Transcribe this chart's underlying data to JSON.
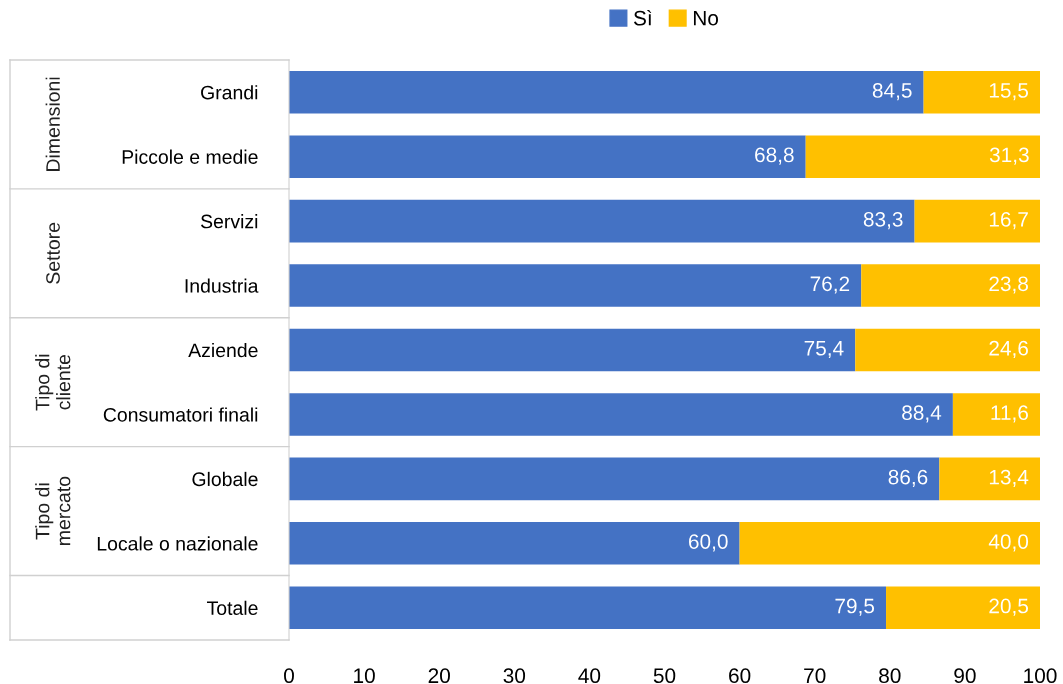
{
  "chart_data": {
    "type": "bar",
    "orientation": "horizontal",
    "stacked": true,
    "categories": [
      "Grandi",
      "Piccole e medie",
      "Servizi",
      "Industria",
      "Aziende",
      "Consumatori finali",
      "Globale",
      "Locale o nazionale",
      "Totale"
    ],
    "series": [
      {
        "name": "Sì",
        "color": "#4472c4",
        "values": [
          84.5,
          68.8,
          83.3,
          76.2,
          75.4,
          88.4,
          86.6,
          60.0,
          79.5
        ],
        "value_labels": [
          "84,5",
          "68,8",
          "83,3",
          "76,2",
          "75,4",
          "88,4",
          "86,6",
          "60,0",
          "79,5"
        ]
      },
      {
        "name": "No",
        "color": "#ffc000",
        "values": [
          15.5,
          31.3,
          16.7,
          23.8,
          24.6,
          11.6,
          13.4,
          40.0,
          20.5
        ],
        "value_labels": [
          "15,5",
          "31,3",
          "16,7",
          "23,8",
          "24,6",
          "11,6",
          "13,4",
          "40,0",
          "20,5"
        ]
      }
    ],
    "xlim": [
      0,
      100
    ],
    "xticks": [
      0,
      10,
      20,
      30,
      40,
      50,
      60,
      70,
      80,
      90,
      100
    ],
    "grid": false,
    "legend": "top",
    "annotations": [
      "Dimensioni",
      "Settore",
      "Tipo di\ncliente",
      "Tipo di\nmercato"
    ]
  }
}
